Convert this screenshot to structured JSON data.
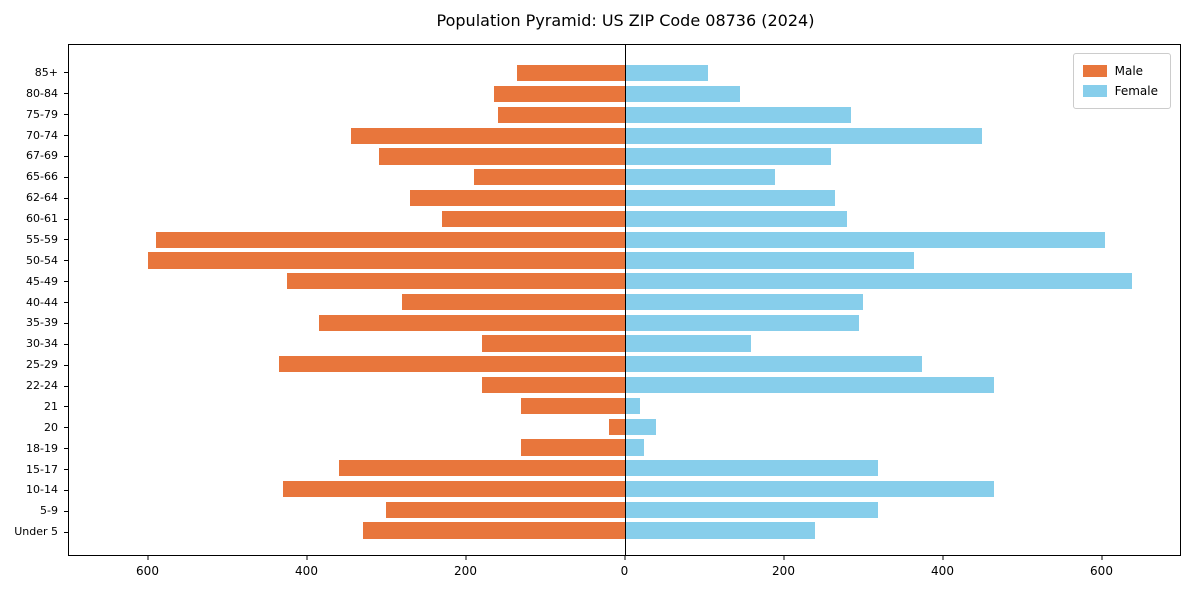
{
  "chart_data": {
    "type": "bar",
    "orientation": "horizontal-diverging",
    "title": "Population Pyramid: US ZIP Code 08736 (2024)",
    "categories": [
      "85+",
      "80-84",
      "75-79",
      "70-74",
      "67-69",
      "65-66",
      "62-64",
      "60-61",
      "55-59",
      "50-54",
      "45-49",
      "40-44",
      "35-39",
      "30-34",
      "25-29",
      "22-24",
      "21",
      "20",
      "18-19",
      "15-17",
      "10-14",
      "5-9",
      "Under 5"
    ],
    "series": [
      {
        "name": "Male",
        "side": "left",
        "color": "#e8763c",
        "values": [
          135,
          165,
          160,
          345,
          310,
          190,
          270,
          230,
          590,
          600,
          425,
          280,
          385,
          180,
          435,
          180,
          130,
          20,
          130,
          360,
          430,
          300,
          330
        ]
      },
      {
        "name": "Female",
        "side": "right",
        "color": "#87ceeb",
        "values": [
          105,
          145,
          285,
          450,
          260,
          190,
          265,
          280,
          605,
          365,
          640,
          300,
          295,
          160,
          375,
          465,
          20,
          40,
          25,
          320,
          465,
          320,
          240
        ]
      }
    ],
    "xlim": [
      -700,
      700
    ],
    "x_ticks": [
      -600,
      -400,
      -200,
      0,
      200,
      400,
      600
    ],
    "x_tick_labels": [
      "600",
      "400",
      "200",
      "0",
      "200",
      "400",
      "600"
    ],
    "legend": {
      "position": "upper right"
    },
    "grid": false,
    "zero_line": true
  }
}
